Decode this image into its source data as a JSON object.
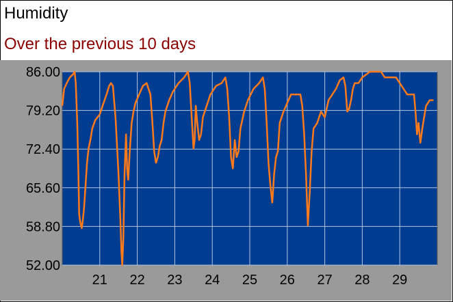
{
  "title": "Humidity",
  "subtitle": "Over the previous 10 days",
  "colors": {
    "plot_background": "#003c8f",
    "outer_background": "#9a9a9a",
    "series_line": "#ff7a1a",
    "grid": "#b8c6e0",
    "subtitle_text": "#8b0000"
  },
  "chart_data": {
    "type": "line",
    "title": "Humidity",
    "subtitle": "Over the previous 10 days",
    "xlabel": "",
    "ylabel": "",
    "ylim": [
      52,
      86
    ],
    "xlim": [
      20,
      30
    ],
    "grid": true,
    "legend": "none",
    "y_ticks": [
      "86.00",
      "79.20",
      "72.40",
      "65.60",
      "58.80",
      "52.00"
    ],
    "x_ticks": [
      "21",
      "22",
      "23",
      "24",
      "25",
      "26",
      "27",
      "28",
      "29"
    ],
    "series": [
      {
        "x": [
          20.0,
          20.05,
          20.12,
          20.2,
          20.28,
          20.33,
          20.36,
          20.4,
          20.43,
          20.45,
          20.48,
          20.52,
          20.55,
          20.58,
          20.62,
          20.66,
          20.7,
          20.75,
          20.8,
          20.88,
          21.0,
          21.1,
          21.18,
          21.25,
          21.3,
          21.35,
          21.42,
          21.5,
          21.55,
          21.58,
          21.6,
          21.63,
          21.66,
          21.7,
          21.73,
          21.76,
          21.8,
          21.85,
          21.9,
          21.95,
          22.05,
          22.15,
          22.25,
          22.35,
          22.4,
          22.45,
          22.5,
          22.55,
          22.6,
          22.65,
          22.7,
          22.75,
          22.85,
          22.95,
          23.1,
          23.25,
          23.35,
          23.4,
          23.45,
          23.5,
          23.53,
          23.56,
          23.6,
          23.65,
          23.7,
          23.75,
          23.85,
          23.95,
          24.1,
          24.25,
          24.3,
          24.35,
          24.4,
          24.45,
          24.5,
          24.55,
          24.6,
          24.65,
          24.7,
          24.75,
          24.85,
          24.95,
          25.1,
          25.25,
          25.3,
          25.35,
          25.4,
          25.45,
          25.5,
          25.55,
          25.6,
          25.65,
          25.7,
          25.75,
          25.8,
          25.9,
          26.0,
          26.1,
          26.2,
          26.3,
          26.35,
          26.4,
          26.45,
          26.5,
          26.55,
          26.6,
          26.65,
          26.7,
          26.8,
          26.9,
          27.0,
          27.1,
          27.2,
          27.3,
          27.4,
          27.5,
          27.55,
          27.6,
          27.65,
          27.7,
          27.75,
          27.8,
          27.9,
          28.0,
          28.1,
          28.2,
          28.3,
          28.4,
          28.5,
          28.6,
          28.7,
          28.8,
          28.9,
          29.0,
          29.1,
          29.2,
          29.3,
          29.38,
          29.42,
          29.46,
          29.5,
          29.55,
          29.6,
          29.65,
          29.7,
          29.8,
          29.9
        ],
        "y": [
          80.0,
          83.0,
          84.0,
          85.0,
          85.5,
          86.0,
          84.0,
          77.0,
          68.0,
          61.0,
          59.5,
          58.5,
          60.0,
          62.0,
          66.0,
          70.0,
          72.5,
          74.0,
          76.0,
          77.5,
          78.5,
          80.5,
          82.0,
          83.5,
          84.0,
          83.5,
          78.0,
          68.0,
          60.0,
          54.0,
          52.0,
          57.0,
          68.0,
          75.0,
          69.0,
          67.0,
          72.0,
          77.0,
          79.0,
          80.5,
          82.0,
          83.5,
          84.0,
          82.0,
          77.5,
          72.0,
          70.0,
          71.0,
          73.0,
          74.0,
          77.0,
          79.0,
          81.0,
          82.5,
          84.0,
          85.0,
          86.0,
          84.0,
          78.0,
          72.5,
          74.0,
          80.0,
          77.0,
          74.0,
          75.0,
          78.0,
          80.0,
          82.0,
          83.5,
          84.0,
          84.5,
          85.0,
          83.0,
          78.0,
          71.0,
          69.0,
          74.0,
          71.0,
          72.0,
          76.0,
          79.0,
          81.0,
          83.0,
          84.0,
          84.5,
          85.0,
          83.0,
          77.0,
          70.0,
          66.0,
          63.0,
          68.0,
          71.0,
          72.0,
          77.0,
          79.0,
          80.5,
          82.0,
          82.0,
          82.0,
          82.0,
          80.0,
          75.0,
          68.0,
          59.0,
          65.0,
          72.0,
          76.0,
          77.0,
          79.0,
          78.0,
          81.0,
          82.0,
          83.0,
          84.5,
          85.0,
          83.5,
          79.0,
          79.5,
          81.0,
          83.0,
          84.0,
          84.0,
          85.0,
          85.5,
          86.0,
          86.0,
          86.0,
          86.0,
          85.0,
          85.0,
          85.0,
          85.0,
          84.0,
          83.0,
          82.0,
          82.0,
          82.0,
          79.0,
          75.0,
          77.0,
          73.5,
          76.0,
          78.0,
          80.0,
          81.0,
          81.0
        ]
      }
    ]
  }
}
